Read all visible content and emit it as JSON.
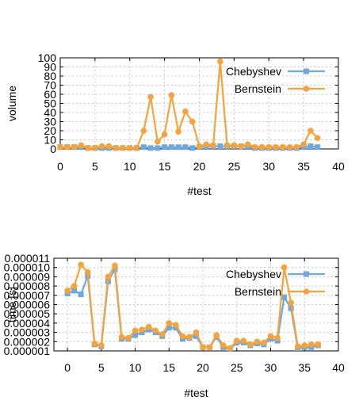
{
  "chart_data": [
    {
      "type": "line",
      "xlabel": "#test",
      "ylabel": "volume",
      "xlim": [
        0,
        40
      ],
      "ylim": [
        0,
        100
      ],
      "xticks": [
        "0",
        "5",
        "10",
        "15",
        "20",
        "25",
        "30",
        "35",
        "40"
      ],
      "yticks": [
        "0",
        "10",
        "20",
        "30",
        "40",
        "50",
        "60",
        "70",
        "80",
        "90",
        "100"
      ],
      "grid": true,
      "legend": "top-right",
      "series": [
        {
          "name": "Chebyshev",
          "color": "#6ea8dc",
          "marker": "square",
          "x": [
            0,
            1,
            2,
            3,
            4,
            5,
            6,
            7,
            8,
            9,
            10,
            11,
            12,
            13,
            14,
            15,
            16,
            17,
            18,
            19,
            20,
            21,
            22,
            23,
            24,
            25,
            26,
            27,
            28,
            29,
            30,
            31,
            32,
            33,
            34,
            35,
            36,
            37
          ],
          "y": [
            2,
            2,
            2,
            2,
            1,
            1,
            1,
            1,
            1,
            1,
            1,
            1,
            2,
            1,
            1,
            2,
            2,
            2,
            2,
            1,
            2,
            3,
            3,
            3,
            3,
            3,
            3,
            3,
            1,
            1,
            1,
            1,
            1,
            1,
            1,
            2,
            3,
            2
          ]
        },
        {
          "name": "Bernstein",
          "color": "#f5a33a",
          "marker": "circle",
          "x": [
            0,
            1,
            2,
            3,
            4,
            5,
            6,
            7,
            8,
            9,
            10,
            11,
            12,
            13,
            14,
            15,
            16,
            17,
            18,
            19,
            20,
            21,
            22,
            23,
            24,
            25,
            26,
            27,
            28,
            29,
            30,
            31,
            32,
            33,
            34,
            35,
            36,
            37
          ],
          "y": [
            2,
            2,
            2,
            4,
            1,
            1,
            3,
            3,
            1,
            1,
            1,
            1,
            20,
            57,
            8,
            16,
            59,
            19,
            41,
            30,
            3,
            5,
            4,
            96,
            4,
            4,
            3,
            5,
            2,
            2,
            2,
            2,
            2,
            2,
            2,
            5,
            20,
            12
          ]
        }
      ]
    },
    {
      "type": "line",
      "xlabel": "#test",
      "ylabel": "time [s]",
      "xlim": [
        -2,
        40
      ],
      "ylim": [
        1e-06,
        1.1e-05
      ],
      "xticks": [
        "0",
        "5",
        "10",
        "15",
        "20",
        "25",
        "30",
        "35",
        "40"
      ],
      "yticks": [
        "0.000001",
        "0.000002",
        "0.000003",
        "0.000004",
        "0.000005",
        "0.000006",
        "0.000007",
        "0.000008",
        "0.000009",
        "0.000010",
        "0.000011"
      ],
      "grid": true,
      "legend": "top-right",
      "series": [
        {
          "name": "Chebyshev",
          "color": "#6ea8dc",
          "marker": "square",
          "x": [
            0,
            1,
            2,
            3,
            4,
            5,
            6,
            7,
            8,
            9,
            10,
            11,
            12,
            13,
            14,
            15,
            16,
            17,
            18,
            19,
            20,
            21,
            22,
            23,
            24,
            25,
            26,
            27,
            28,
            29,
            30,
            31,
            32,
            33,
            34,
            35,
            36,
            37
          ],
          "y": [
            7.2e-06,
            7.5e-06,
            7.1e-06,
            9.1e-06,
            1.7e-06,
            1.5e-06,
            8.5e-06,
            9.8e-06,
            2.3e-06,
            2.3e-06,
            2.7e-06,
            3e-06,
            3.3e-06,
            3e-06,
            2.6e-06,
            3.5e-06,
            3.5e-06,
            2.3e-06,
            2.4e-06,
            2.6e-06,
            1.4e-06,
            1.4e-06,
            2.5e-06,
            1.4e-06,
            1.2e-06,
            1.9e-06,
            1.9e-06,
            1.6e-06,
            1.8e-06,
            1.7e-06,
            2.3e-06,
            2.1e-06,
            6.8e-06,
            5.6e-06,
            1.3e-06,
            1.4e-06,
            1.4e-06,
            1.6e-06
          ]
        },
        {
          "name": "Bernstein",
          "color": "#f5a33a",
          "marker": "circle",
          "x": [
            0,
            1,
            2,
            3,
            4,
            5,
            6,
            7,
            8,
            9,
            10,
            11,
            12,
            13,
            14,
            15,
            16,
            17,
            18,
            19,
            20,
            21,
            22,
            23,
            24,
            25,
            26,
            27,
            28,
            29,
            30,
            31,
            32,
            33,
            34,
            35,
            36,
            37
          ],
          "y": [
            7.5e-06,
            8e-06,
            1.03e-05,
            9.5e-06,
            1.8e-06,
            1.6e-06,
            9e-06,
            1.02e-05,
            2.5e-06,
            2.4e-06,
            3.2e-06,
            3.3e-06,
            3.6e-06,
            3.2e-06,
            2.8e-06,
            4e-06,
            3.8e-06,
            2.6e-06,
            2.5e-06,
            3e-06,
            1.4e-06,
            1.4e-06,
            2.7e-06,
            1.6e-06,
            1.3e-06,
            2.1e-06,
            2.1e-06,
            1.7e-06,
            2e-06,
            1.9e-06,
            2.6e-06,
            2.4e-06,
            1e-05,
            6.2e-06,
            1.5e-06,
            1.6e-06,
            1.7e-06,
            1.7e-06
          ]
        }
      ]
    }
  ]
}
